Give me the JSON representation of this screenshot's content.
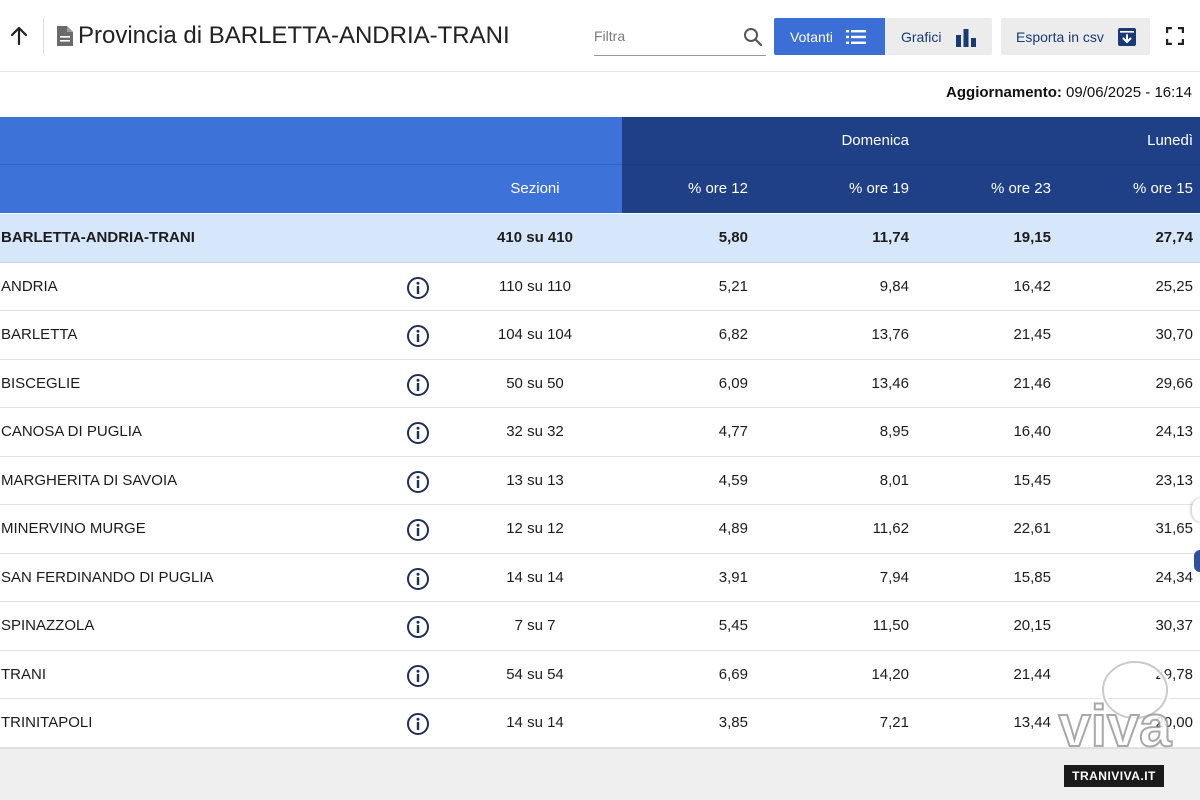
{
  "header": {
    "title": "Provincia di BARLETTA-ANDRIA-TRANI",
    "filter_placeholder": "Filtra",
    "btn_votanti": "Votanti",
    "btn_grafici": "Grafici",
    "btn_csv": "Esporta in csv"
  },
  "update": {
    "label": "Aggiornamento:",
    "value": "09/06/2025 - 16:14"
  },
  "table": {
    "group_headers": {
      "domenica": "Domenica",
      "lunedi": "Lunedì"
    },
    "columns": {
      "sezioni": "Sezioni",
      "ore12": "% ore 12",
      "ore19": "% ore 19",
      "ore23": "% ore 23",
      "ore15": "% ore 15"
    },
    "total": {
      "name": "BARLETTA-ANDRIA-TRANI",
      "sezioni": "410 su 410",
      "ore12": "5,80",
      "ore19": "11,74",
      "ore23": "19,15",
      "ore15": "27,74"
    },
    "rows": [
      {
        "name": "ANDRIA",
        "sezioni": "110 su 110",
        "ore12": "5,21",
        "ore19": "9,84",
        "ore23": "16,42",
        "ore15": "25,25"
      },
      {
        "name": "BARLETTA",
        "sezioni": "104 su 104",
        "ore12": "6,82",
        "ore19": "13,76",
        "ore23": "21,45",
        "ore15": "30,70"
      },
      {
        "name": "BISCEGLIE",
        "sezioni": "50 su 50",
        "ore12": "6,09",
        "ore19": "13,46",
        "ore23": "21,46",
        "ore15": "29,66"
      },
      {
        "name": "CANOSA DI PUGLIA",
        "sezioni": "32 su 32",
        "ore12": "4,77",
        "ore19": "8,95",
        "ore23": "16,40",
        "ore15": "24,13"
      },
      {
        "name": "MARGHERITA DI SAVOIA",
        "sezioni": "13 su 13",
        "ore12": "4,59",
        "ore19": "8,01",
        "ore23": "15,45",
        "ore15": "23,13"
      },
      {
        "name": "MINERVINO MURGE",
        "sezioni": "12 su 12",
        "ore12": "4,89",
        "ore19": "11,62",
        "ore23": "22,61",
        "ore15": "31,65"
      },
      {
        "name": "SAN FERDINANDO DI PUGLIA",
        "sezioni": "14 su 14",
        "ore12": "3,91",
        "ore19": "7,94",
        "ore23": "15,85",
        "ore15": "24,34"
      },
      {
        "name": "SPINAZZOLA",
        "sezioni": "7 su 7",
        "ore12": "5,45",
        "ore19": "11,50",
        "ore23": "20,15",
        "ore15": "30,37"
      },
      {
        "name": "TRANI",
        "sezioni": "54 su 54",
        "ore12": "6,69",
        "ore19": "14,20",
        "ore23": "21,44",
        "ore15": "29,78"
      },
      {
        "name": "TRINITAPOLI",
        "sezioni": "14 su 14",
        "ore12": "3,85",
        "ore19": "7,21",
        "ore23": "13,44",
        "ore15": "20,00"
      }
    ]
  },
  "watermark": {
    "logo_text": "viva",
    "domain": "TRANIVIVA.IT"
  },
  "colors": {
    "primary_blue": "#3d72d8",
    "dark_blue": "#1f3f87",
    "total_row_bg": "#d6e6fb"
  }
}
